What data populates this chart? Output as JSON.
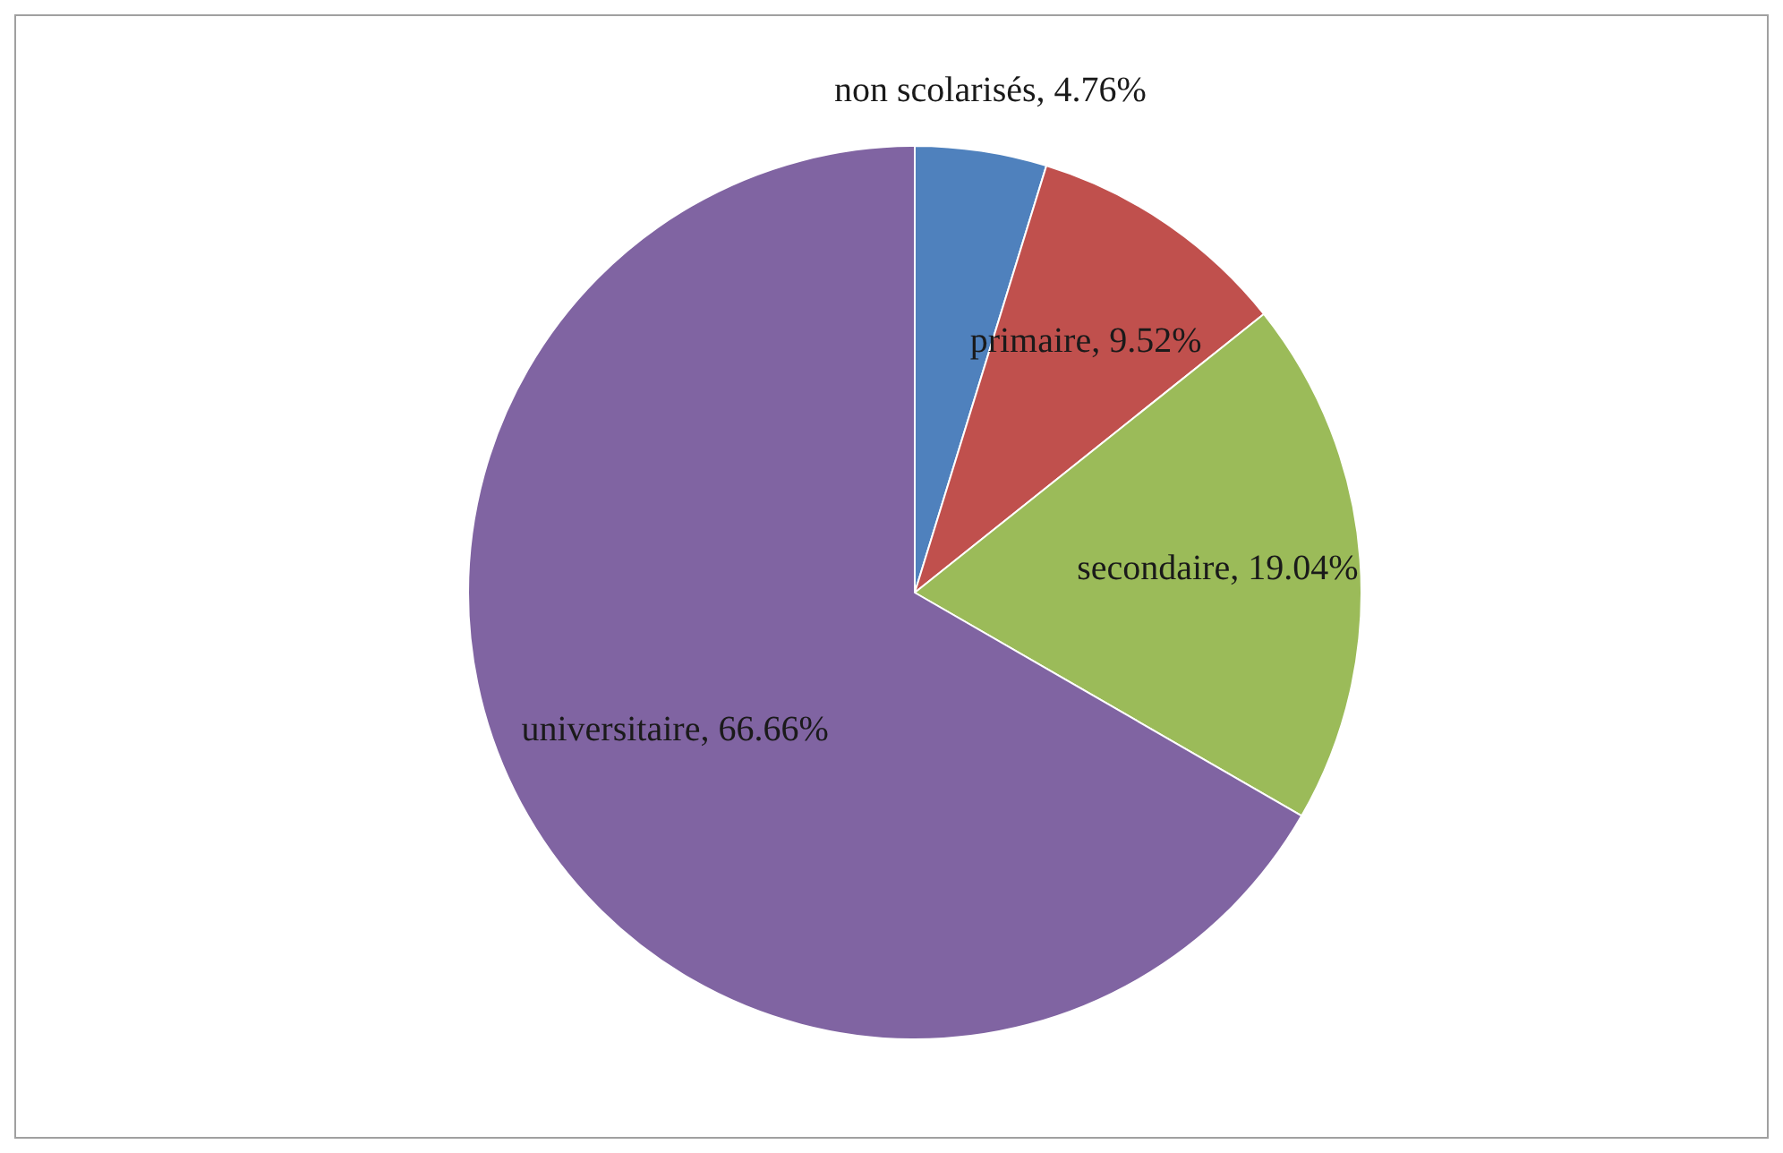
{
  "chart_data": {
    "type": "pie",
    "categories": [
      "non scolarisés",
      "primaire",
      "secondaire",
      "universitaire"
    ],
    "values": [
      4.76,
      9.52,
      19.04,
      66.66
    ],
    "value_labels": [
      "4.76%",
      "9.52%",
      "19.04%",
      "66.66%"
    ],
    "colors": [
      "#4f81bd",
      "#c0504d",
      "#9bbb59",
      "#8064a2"
    ],
    "legend": false
  }
}
